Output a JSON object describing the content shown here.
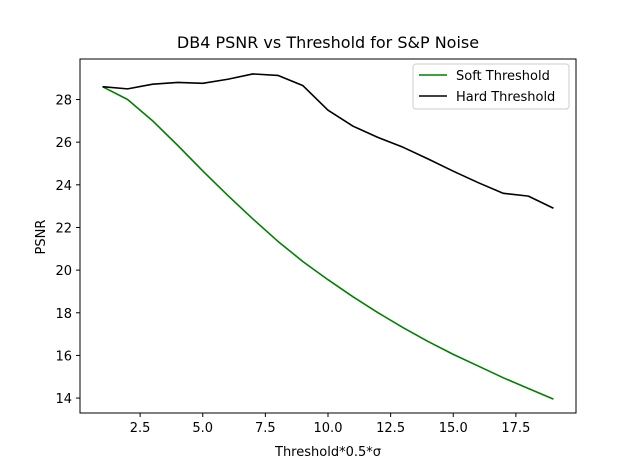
{
  "chart_data": {
    "type": "line",
    "title": "DB4 PSNR vs Threshold for S&P Noise",
    "xlabel": "Threshold*0.5*σ",
    "ylabel": "PSNR",
    "xlim": [
      0.1,
      19.9
    ],
    "ylim": [
      13.3,
      29.9
    ],
    "xticks": [
      2.5,
      5.0,
      7.5,
      10.0,
      12.5,
      15.0,
      17.5
    ],
    "xtick_labels": [
      "2.5",
      "5.0",
      "7.5",
      "10.0",
      "12.5",
      "15.0",
      "17.5"
    ],
    "yticks": [
      14,
      16,
      18,
      20,
      22,
      24,
      26,
      28
    ],
    "ytick_labels": [
      "14",
      "16",
      "18",
      "20",
      "22",
      "24",
      "26",
      "28"
    ],
    "grid": false,
    "legend_position": "top-right",
    "x": [
      1,
      2,
      3,
      4,
      5,
      6,
      7,
      8,
      9,
      10,
      11,
      12,
      13,
      14,
      15,
      16,
      17,
      18,
      19
    ],
    "series": [
      {
        "name": "Soft Threshold",
        "color": "#008000",
        "values": [
          28.6,
          28.0,
          27.0,
          25.85,
          24.65,
          23.5,
          22.4,
          21.35,
          20.4,
          19.55,
          18.75,
          18.0,
          17.3,
          16.65,
          16.05,
          15.5,
          14.95,
          14.45,
          13.95
        ]
      },
      {
        "name": "Hard Threshold",
        "color": "#000000",
        "values": [
          28.6,
          28.5,
          28.72,
          28.8,
          28.76,
          28.95,
          29.2,
          29.13,
          28.65,
          27.5,
          26.75,
          26.22,
          25.76,
          25.21,
          24.64,
          24.1,
          23.6,
          23.47,
          22.9
        ]
      }
    ]
  }
}
